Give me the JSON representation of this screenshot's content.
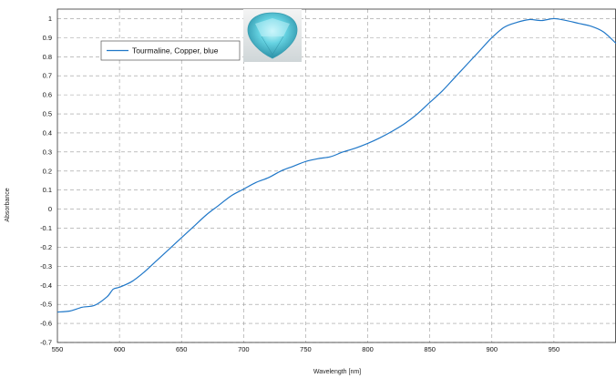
{
  "chart_data": {
    "type": "line",
    "title": "",
    "xlabel": "Wavelength [nm]",
    "ylabel": "Absorbance",
    "xlim": [
      550,
      1000
    ],
    "ylim": [
      -0.7,
      1.05
    ],
    "x_ticks": [
      550,
      600,
      650,
      700,
      750,
      800,
      850,
      900,
      950
    ],
    "y_ticks": [
      -0.7,
      -0.6,
      -0.5,
      -0.4,
      -0.3,
      -0.2,
      -0.1,
      0,
      0.1,
      0.2,
      0.3,
      0.4,
      0.5,
      0.6,
      0.7,
      0.8,
      0.9,
      1
    ],
    "grid": true,
    "legend_position": "top-left",
    "series": [
      {
        "name": "Tourmaline, Copper, blue",
        "color": "#1f77c8",
        "x": [
          550,
          560,
          570,
          580,
          590,
          595,
          600,
          610,
          620,
          630,
          640,
          650,
          660,
          670,
          680,
          690,
          700,
          710,
          720,
          730,
          740,
          750,
          760,
          770,
          780,
          790,
          800,
          810,
          820,
          830,
          840,
          850,
          860,
          870,
          880,
          890,
          900,
          910,
          920,
          930,
          940,
          950,
          960,
          970,
          980,
          990,
          1000
        ],
        "values": [
          -0.54,
          -0.535,
          -0.515,
          -0.505,
          -0.46,
          -0.42,
          -0.41,
          -0.38,
          -0.33,
          -0.27,
          -0.21,
          -0.15,
          -0.09,
          -0.03,
          0.02,
          0.07,
          0.105,
          0.14,
          0.165,
          0.2,
          0.225,
          0.25,
          0.265,
          0.275,
          0.3,
          0.32,
          0.345,
          0.375,
          0.41,
          0.45,
          0.5,
          0.56,
          0.62,
          0.69,
          0.76,
          0.83,
          0.9,
          0.955,
          0.98,
          0.995,
          0.99,
          1.0,
          0.99,
          0.975,
          0.96,
          0.93,
          0.87
        ]
      }
    ]
  },
  "legend": {
    "label": "Tourmaline, Copper, blue",
    "icon": "gem-thumbnail"
  },
  "colors": {
    "line": "#1f77c8",
    "grid": "#9a9a9a"
  }
}
